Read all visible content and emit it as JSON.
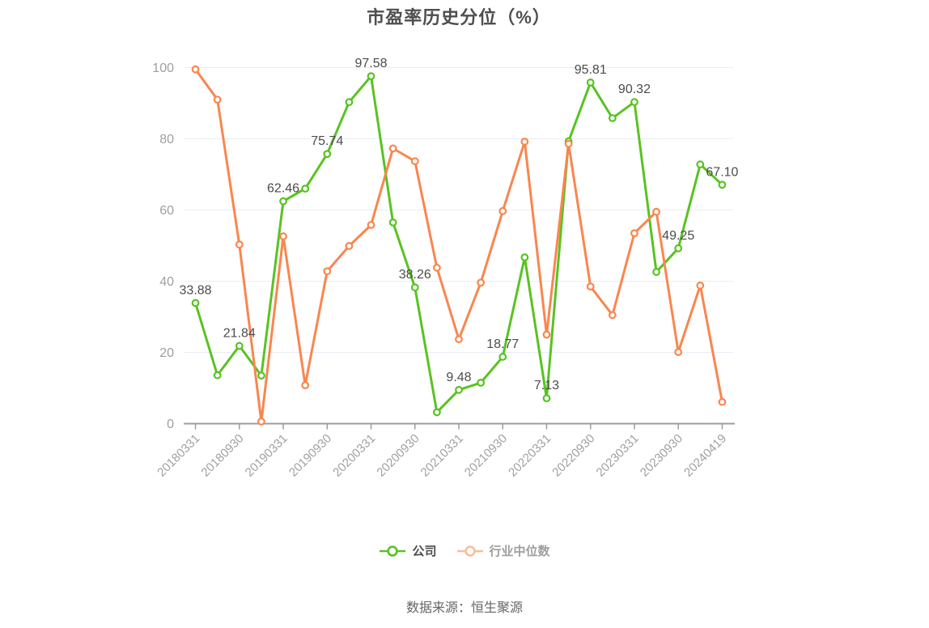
{
  "title": "市盈率历史分位（%）",
  "source_note": "数据来源：恒生聚源",
  "legend": {
    "items": [
      {
        "id": "company",
        "label": "公司",
        "marker_color": "#58c322",
        "label_color": "#4d4d4d"
      },
      {
        "id": "industry-median",
        "label": "行业中位数",
        "marker_color": "#fbbd9b",
        "label_color": "#9e9e9e"
      }
    ]
  },
  "chart_data": {
    "type": "line",
    "x_tick_labels": [
      "20180331",
      "20180930",
      "20190331",
      "20190930",
      "20200331",
      "20200930",
      "20210331",
      "20210930",
      "20220331",
      "20220930",
      "20230331",
      "20230930",
      "20240419"
    ],
    "tick_every": 2,
    "num_points": 25,
    "ylim": [
      0,
      100
    ],
    "yticks": [
      0,
      20,
      40,
      60,
      80,
      100
    ],
    "grid": true,
    "legend_position": "bottom",
    "series": [
      {
        "name": "公司",
        "color": "#58c322",
        "values": [
          33.88,
          13.6,
          21.84,
          13.5,
          62.46,
          66.0,
          75.74,
          90.3,
          97.58,
          56.5,
          38.26,
          3.2,
          9.48,
          11.5,
          18.77,
          46.7,
          7.13,
          79.3,
          95.81,
          85.8,
          90.32,
          42.6,
          49.25,
          72.8,
          67.1
        ],
        "point_labels": [
          "33.88",
          null,
          "21.84",
          null,
          "62.46",
          null,
          "75.74",
          null,
          "97.58",
          null,
          "38.26",
          null,
          "9.48",
          null,
          "18.77",
          null,
          "7.13",
          null,
          "95.81",
          null,
          "90.32",
          null,
          "49.25",
          null,
          "67.10"
        ]
      },
      {
        "name": "行业中位数",
        "color": "#f9864e",
        "values": [
          99.5,
          91.0,
          50.3,
          0.6,
          52.6,
          10.8,
          42.8,
          49.9,
          55.8,
          77.3,
          73.7,
          43.8,
          23.7,
          39.6,
          59.7,
          79.2,
          25.0,
          78.6,
          38.5,
          30.5,
          53.5,
          59.5,
          20.1,
          38.8,
          6.1
        ],
        "point_labels": [
          null,
          null,
          null,
          null,
          null,
          null,
          null,
          null,
          null,
          null,
          null,
          null,
          null,
          null,
          null,
          null,
          null,
          null,
          null,
          null,
          null,
          null,
          null,
          null,
          null
        ]
      }
    ],
    "colors": {
      "grid": "#e9eef5",
      "axis": "#9c9c9c",
      "tick_label": "#a0a0a0",
      "value_label": "#4c4c4c",
      "background": "#ffffff"
    }
  }
}
